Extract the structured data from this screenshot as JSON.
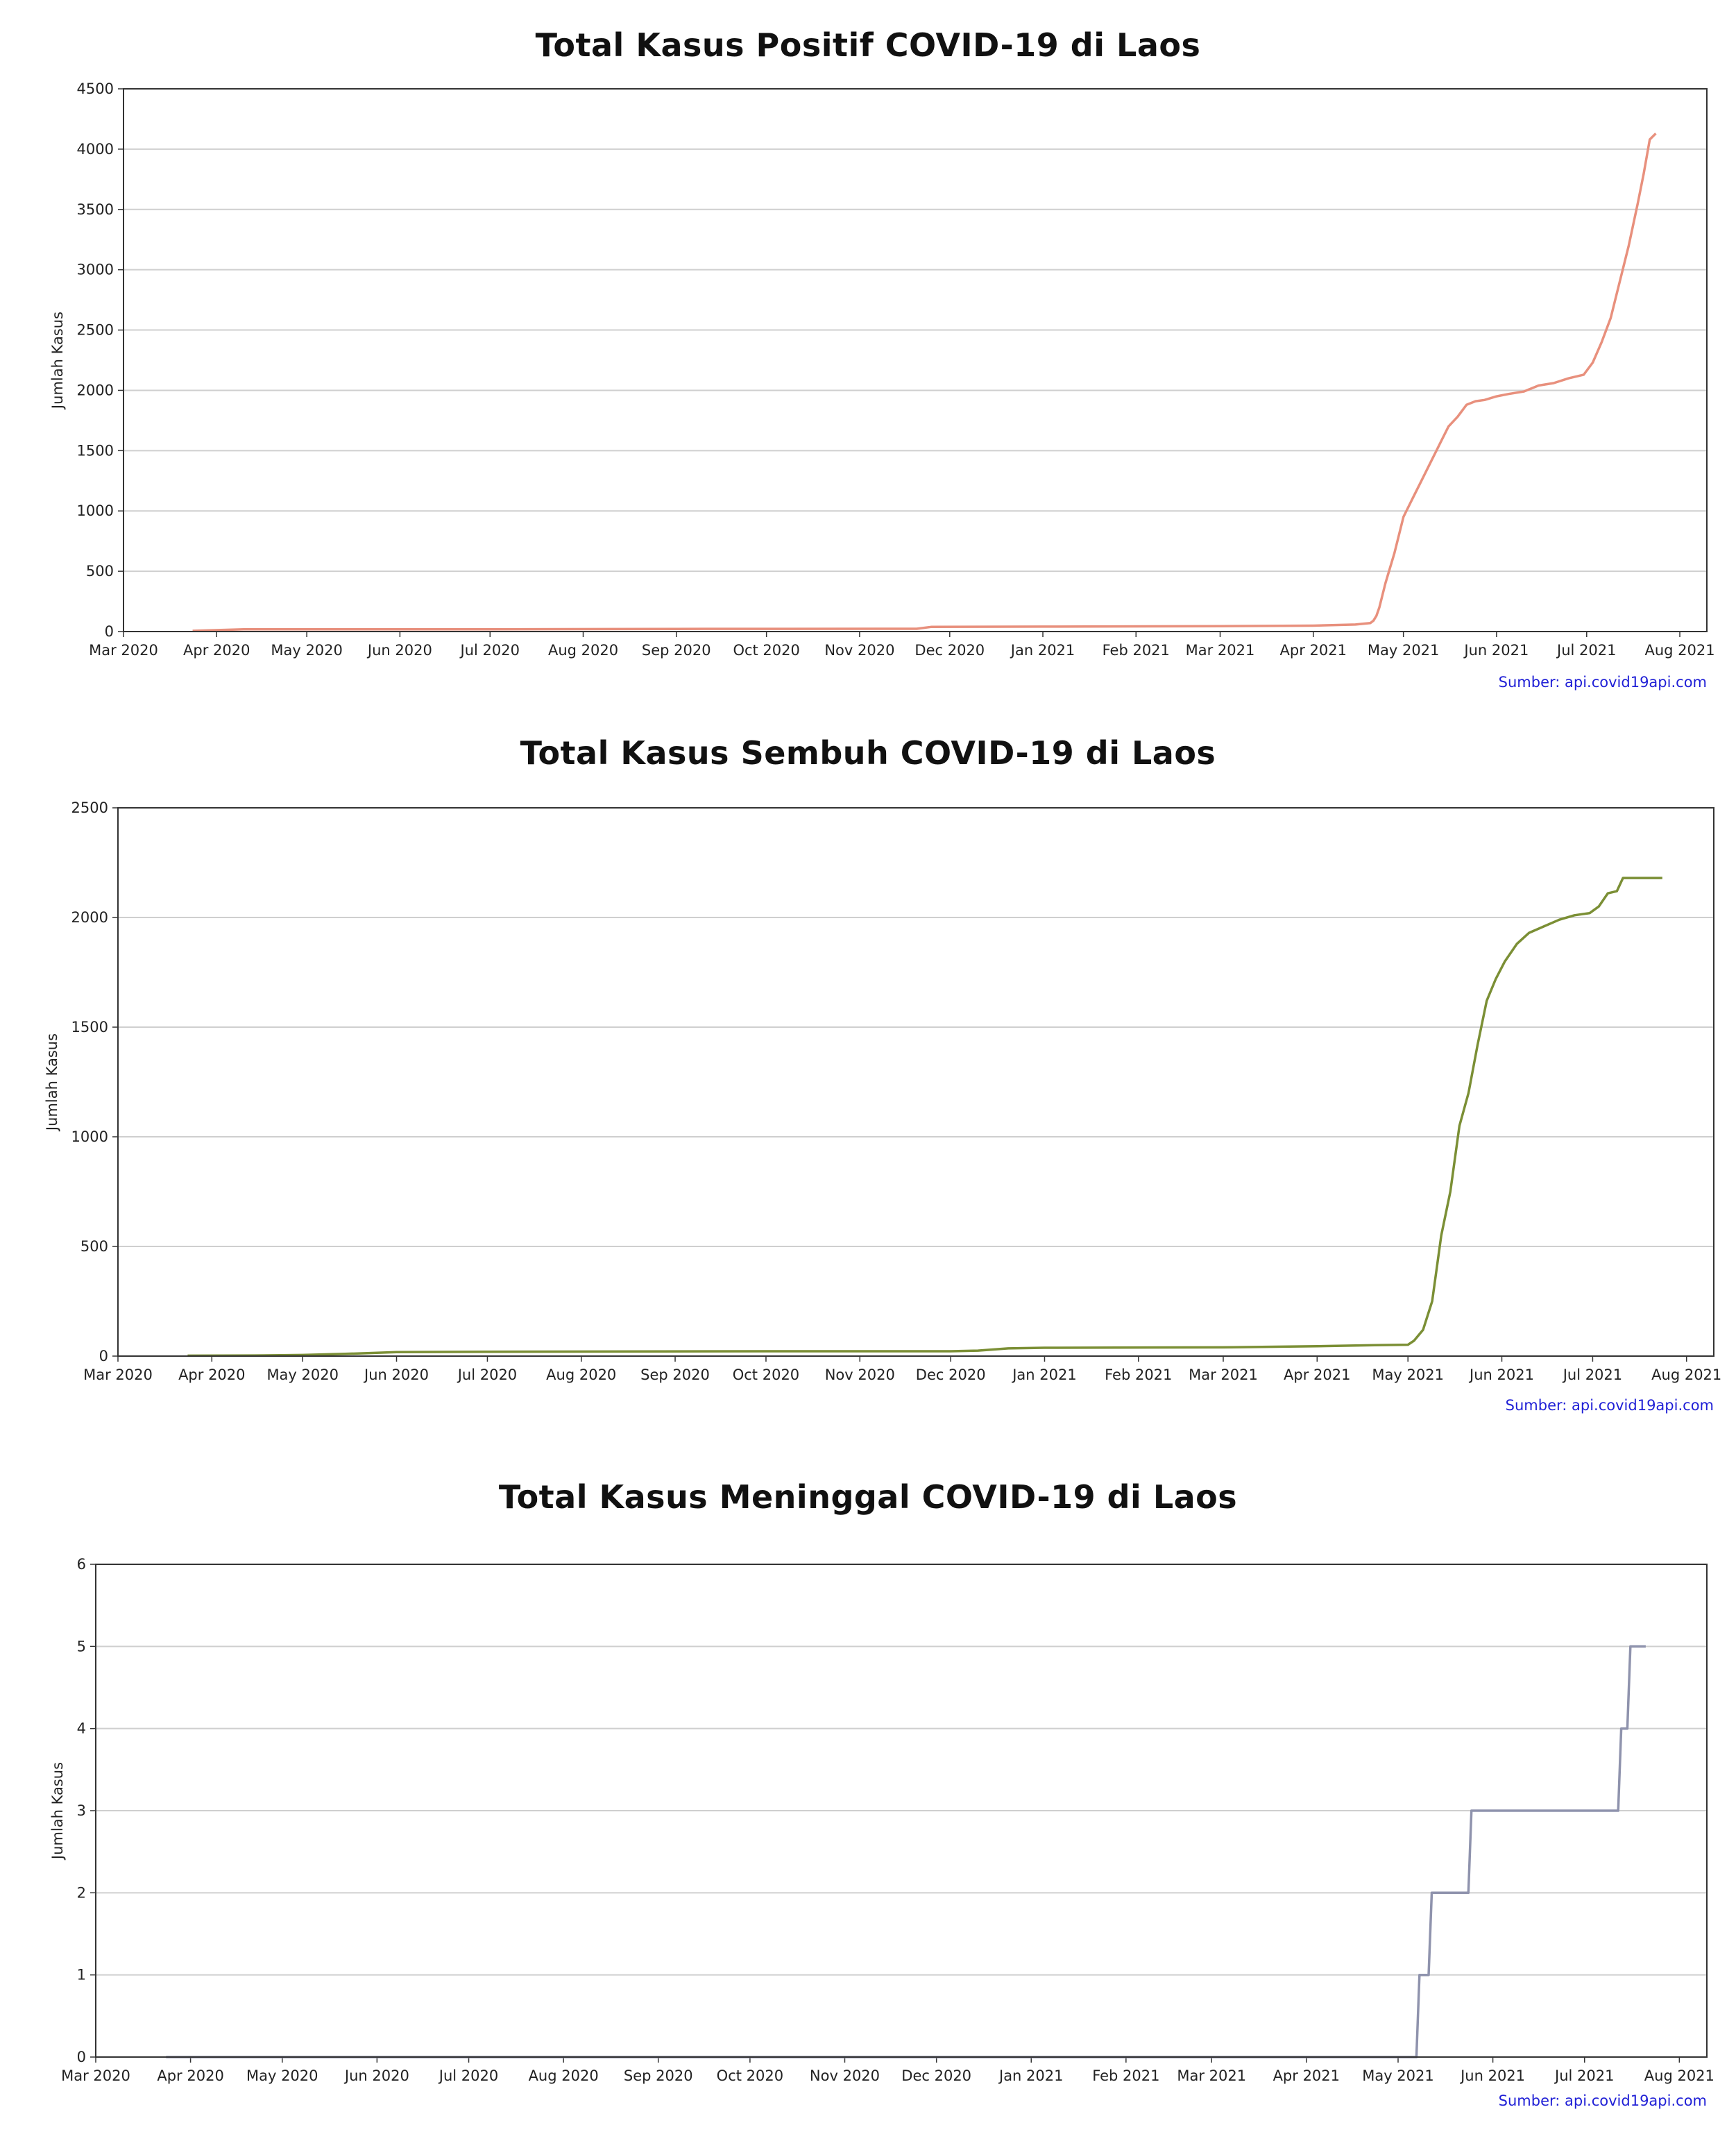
{
  "chart_data": [
    {
      "type": "line",
      "title": "Total Kasus Positif COVID-19 di Laos",
      "ylabel": "Jumlah Kasus",
      "xlabel": "",
      "source": "Sumber: api.covid19api.com",
      "color": "#e8907d",
      "grid": "y",
      "ylim": [
        0,
        4500
      ],
      "yticks": [
        0,
        500,
        1000,
        1500,
        2000,
        2500,
        3000,
        3500,
        4000,
        4500
      ],
      "xlim": [
        "2020-03-01",
        "2021-08-10"
      ],
      "xticks": [
        {
          "date": "2020-03-01",
          "label": "Mar 2020"
        },
        {
          "date": "2020-04-01",
          "label": "Apr 2020"
        },
        {
          "date": "2020-05-01",
          "label": "May 2020"
        },
        {
          "date": "2020-06-01",
          "label": "Jun 2020"
        },
        {
          "date": "2020-07-01",
          "label": "Jul 2020"
        },
        {
          "date": "2020-08-01",
          "label": "Aug 2020"
        },
        {
          "date": "2020-09-01",
          "label": "Sep 2020"
        },
        {
          "date": "2020-10-01",
          "label": "Oct 2020"
        },
        {
          "date": "2020-11-01",
          "label": "Nov 2020"
        },
        {
          "date": "2020-12-01",
          "label": "Dec 2020"
        },
        {
          "date": "2021-01-01",
          "label": "Jan 2021"
        },
        {
          "date": "2021-02-01",
          "label": "Feb 2021"
        },
        {
          "date": "2021-03-01",
          "label": "Mar 2021"
        },
        {
          "date": "2021-04-01",
          "label": "Apr 2021"
        },
        {
          "date": "2021-05-01",
          "label": "May 2021"
        },
        {
          "date": "2021-06-01",
          "label": "Jun 2021"
        },
        {
          "date": "2021-07-01",
          "label": "Jul 2021"
        },
        {
          "date": "2021-08-01",
          "label": "Aug 2021"
        }
      ],
      "series": [
        {
          "x": [
            "2020-03-24",
            "2020-04-10",
            "2020-05-01",
            "2020-07-01",
            "2020-09-01",
            "2020-11-20",
            "2020-11-25",
            "2021-01-01",
            "2021-03-01",
            "2021-04-01",
            "2021-04-15",
            "2021-04-20",
            "2021-04-21",
            "2021-04-22",
            "2021-04-23",
            "2021-04-25",
            "2021-04-28",
            "2021-05-01",
            "2021-05-04",
            "2021-05-07",
            "2021-05-10",
            "2021-05-13",
            "2021-05-16",
            "2021-05-19",
            "2021-05-22",
            "2021-05-25",
            "2021-05-28",
            "2021-06-01",
            "2021-06-05",
            "2021-06-10",
            "2021-06-15",
            "2021-06-20",
            "2021-06-25",
            "2021-06-30",
            "2021-07-03",
            "2021-07-06",
            "2021-07-09",
            "2021-07-12",
            "2021-07-15",
            "2021-07-18",
            "2021-07-20",
            "2021-07-22",
            "2021-07-24"
          ],
          "y": [
            6,
            19,
            19,
            19,
            22,
            23,
            39,
            41,
            45,
            49,
            58,
            70,
            90,
            130,
            200,
            400,
            650,
            950,
            1100,
            1250,
            1400,
            1550,
            1700,
            1780,
            1880,
            1910,
            1920,
            1950,
            1970,
            1990,
            2040,
            2060,
            2100,
            2130,
            2230,
            2400,
            2600,
            2900,
            3200,
            3550,
            3800,
            4080,
            4130
          ]
        }
      ]
    },
    {
      "type": "line",
      "title": "Total Kasus Sembuh COVID-19 di Laos",
      "ylabel": "Jumlah Kasus",
      "xlabel": "",
      "source": "Sumber: api.covid19api.com",
      "color": "#7b8f35",
      "grid": "y",
      "ylim": [
        0,
        2500
      ],
      "yticks": [
        0,
        500,
        1000,
        1500,
        2000,
        2500
      ],
      "xlim": [
        "2020-03-01",
        "2021-08-10"
      ],
      "xticks": [
        {
          "date": "2020-03-01",
          "label": "Mar 2020"
        },
        {
          "date": "2020-04-01",
          "label": "Apr 2020"
        },
        {
          "date": "2020-05-01",
          "label": "May 2020"
        },
        {
          "date": "2020-06-01",
          "label": "Jun 2020"
        },
        {
          "date": "2020-07-01",
          "label": "Jul 2020"
        },
        {
          "date": "2020-08-01",
          "label": "Aug 2020"
        },
        {
          "date": "2020-09-01",
          "label": "Sep 2020"
        },
        {
          "date": "2020-10-01",
          "label": "Oct 2020"
        },
        {
          "date": "2020-11-01",
          "label": "Nov 2020"
        },
        {
          "date": "2020-12-01",
          "label": "Dec 2020"
        },
        {
          "date": "2021-01-01",
          "label": "Jan 2021"
        },
        {
          "date": "2021-02-01",
          "label": "Feb 2021"
        },
        {
          "date": "2021-03-01",
          "label": "Mar 2021"
        },
        {
          "date": "2021-04-01",
          "label": "Apr 2021"
        },
        {
          "date": "2021-05-01",
          "label": "May 2021"
        },
        {
          "date": "2021-06-01",
          "label": "Jun 2021"
        },
        {
          "date": "2021-07-01",
          "label": "Jul 2021"
        },
        {
          "date": "2021-08-01",
          "label": "Aug 2021"
        }
      ],
      "series": [
        {
          "x": [
            "2020-03-24",
            "2020-04-15",
            "2020-05-01",
            "2020-05-15",
            "2020-06-01",
            "2020-07-01",
            "2020-10-01",
            "2020-12-01",
            "2020-12-10",
            "2020-12-20",
            "2021-01-01",
            "2021-03-01",
            "2021-04-01",
            "2021-04-20",
            "2021-05-01",
            "2021-05-03",
            "2021-05-06",
            "2021-05-09",
            "2021-05-12",
            "2021-05-15",
            "2021-05-18",
            "2021-05-21",
            "2021-05-24",
            "2021-05-27",
            "2021-05-30",
            "2021-06-02",
            "2021-06-06",
            "2021-06-10",
            "2021-06-15",
            "2021-06-20",
            "2021-06-25",
            "2021-06-30",
            "2021-07-03",
            "2021-07-06",
            "2021-07-09",
            "2021-07-11",
            "2021-07-20",
            "2021-07-24"
          ],
          "y": [
            2,
            3,
            5,
            10,
            18,
            20,
            22,
            22,
            25,
            35,
            38,
            40,
            45,
            50,
            52,
            70,
            120,
            250,
            550,
            750,
            1050,
            1200,
            1420,
            1620,
            1720,
            1800,
            1880,
            1930,
            1960,
            1990,
            2010,
            2020,
            2050,
            2110,
            2120,
            2180,
            2180,
            2180
          ]
        }
      ]
    },
    {
      "type": "line",
      "title": "Total Kasus Meninggal COVID-19 di Laos",
      "ylabel": "Jumlah Kasus",
      "xlabel": "",
      "source": "Sumber: api.covid19api.com",
      "color": "#8f93ad",
      "grid": "y",
      "ylim": [
        0,
        6
      ],
      "yticks": [
        0,
        1,
        2,
        3,
        4,
        5,
        6
      ],
      "xlim": [
        "2020-03-01",
        "2021-08-10"
      ],
      "xticks": [
        {
          "date": "2020-03-01",
          "label": "Mar 2020"
        },
        {
          "date": "2020-04-01",
          "label": "Apr 2020"
        },
        {
          "date": "2020-05-01",
          "label": "May 2020"
        },
        {
          "date": "2020-06-01",
          "label": "Jun 2020"
        },
        {
          "date": "2020-07-01",
          "label": "Jul 2020"
        },
        {
          "date": "2020-08-01",
          "label": "Aug 2020"
        },
        {
          "date": "2020-09-01",
          "label": "Sep 2020"
        },
        {
          "date": "2020-10-01",
          "label": "Oct 2020"
        },
        {
          "date": "2020-11-01",
          "label": "Nov 2020"
        },
        {
          "date": "2020-12-01",
          "label": "Dec 2020"
        },
        {
          "date": "2021-01-01",
          "label": "Jan 2021"
        },
        {
          "date": "2021-02-01",
          "label": "Feb 2021"
        },
        {
          "date": "2021-03-01",
          "label": "Mar 2021"
        },
        {
          "date": "2021-04-01",
          "label": "Apr 2021"
        },
        {
          "date": "2021-05-01",
          "label": "May 2021"
        },
        {
          "date": "2021-06-01",
          "label": "Jun 2021"
        },
        {
          "date": "2021-07-01",
          "label": "Jul 2021"
        },
        {
          "date": "2021-08-01",
          "label": "Aug 2021"
        }
      ],
      "series": [
        {
          "x": [
            "2020-03-24",
            "2021-05-07",
            "2021-05-08",
            "2021-05-11",
            "2021-05-12",
            "2021-05-24",
            "2021-05-25",
            "2021-07-12",
            "2021-07-13",
            "2021-07-15",
            "2021-07-16",
            "2021-07-21"
          ],
          "y": [
            0,
            0,
            1,
            1,
            2,
            2,
            3,
            3,
            4,
            4,
            5,
            5
          ],
          "step": true
        }
      ]
    }
  ]
}
